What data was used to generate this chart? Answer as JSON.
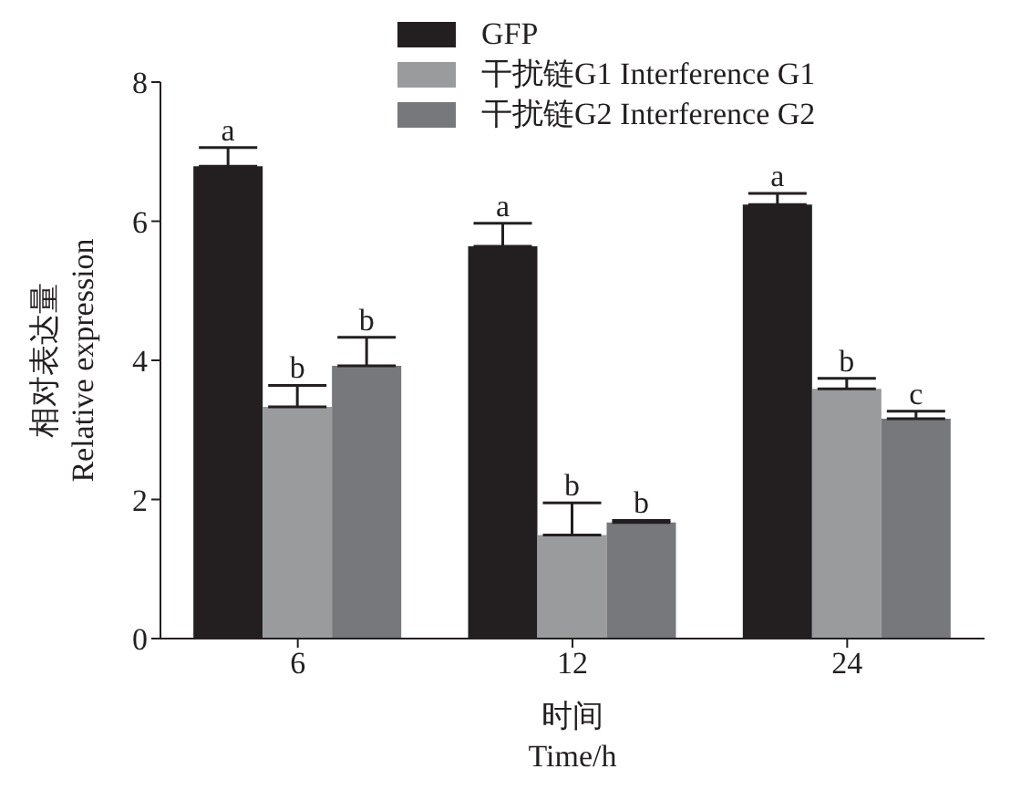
{
  "chart_data": {
    "type": "bar",
    "xlabel": "时间\nTime/h",
    "ylabel": "相对表达量\nRelative expression",
    "categories": [
      "6",
      "12",
      "24"
    ],
    "series": [
      {
        "name": "GFP",
        "color": "#231f20",
        "values": [
          6.79,
          5.64,
          6.24
        ],
        "errors": [
          [
            6.79,
            7.06
          ],
          [
            5.64,
            5.97
          ],
          [
            6.24,
            6.4
          ]
        ],
        "value_labels": [
          "a",
          "a",
          "a"
        ]
      },
      {
        "name": "干扰链G1 Interference G1",
        "color": "#9a9b9d",
        "values": [
          3.33,
          1.49,
          3.59
        ],
        "errors": [
          [
            3.33,
            3.64
          ],
          [
            1.49,
            1.95
          ],
          [
            3.59,
            3.74
          ]
        ],
        "value_labels": [
          "b",
          "b",
          "b"
        ]
      },
      {
        "name": "干扰链G2 Interference G2",
        "color": "#77787b",
        "values": [
          3.92,
          1.67,
          3.16
        ],
        "errors": [
          [
            3.92,
            4.33
          ],
          [
            1.67,
            1.7
          ],
          [
            3.16,
            3.27
          ]
        ],
        "value_labels": [
          "b",
          "b",
          "c"
        ]
      }
    ],
    "ylim": [
      0,
      8
    ],
    "yticks": [
      0,
      2,
      4,
      6,
      8
    ],
    "grid": false,
    "legend": "top"
  }
}
